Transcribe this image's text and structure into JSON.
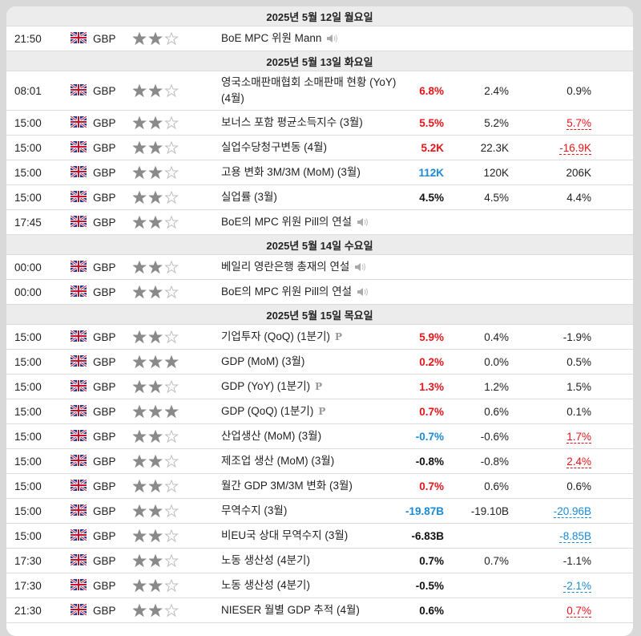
{
  "calendar": {
    "rows": [
      {
        "date": "2025년 5월 12일 월요일"
      },
      {
        "time": "21:50",
        "currency": "GBP",
        "importance": 2,
        "event": "BoE MPC 위원 Mann",
        "speech": true
      },
      {
        "date": "2025년 5월 13일 화요일"
      },
      {
        "time": "08:01",
        "currency": "GBP",
        "importance": 2,
        "event": "영국소매판매협회 소매판매 현황 (YoY) (4월)",
        "actual": "6.8%",
        "actual_color": "#e4141b",
        "forecast": "2.4%",
        "previous": "0.9%"
      },
      {
        "time": "15:00",
        "currency": "GBP",
        "importance": 2,
        "event": "보너스 포함 평균소득지수 (3월)",
        "actual": "5.5%",
        "actual_color": "#e4141b",
        "forecast": "5.2%",
        "previous": "5.7%",
        "previous_color": "#e4141b"
      },
      {
        "time": "15:00",
        "currency": "GBP",
        "importance": 2,
        "event": "실업수당청구변동 (4월)",
        "actual": "5.2K",
        "actual_color": "#e4141b",
        "forecast": "22.3K",
        "previous": "-16.9K",
        "previous_color": "#e4141b"
      },
      {
        "time": "15:00",
        "currency": "GBP",
        "importance": 2,
        "event": "고용 변화 3M/3M (MoM) (3월)",
        "actual": "112K",
        "actual_color": "#1a8ad4",
        "forecast": "120K",
        "previous": "206K"
      },
      {
        "time": "15:00",
        "currency": "GBP",
        "importance": 2,
        "event": "실업률 (3월)",
        "actual": "4.5%",
        "actual_color": "#111111",
        "forecast": "4.5%",
        "previous": "4.4%"
      },
      {
        "time": "17:45",
        "currency": "GBP",
        "importance": 2,
        "event": "BoE의 MPC 위원 Pill의 연설",
        "speech": true
      },
      {
        "date": "2025년 5월 14일 수요일"
      },
      {
        "time": "00:00",
        "currency": "GBP",
        "importance": 2,
        "event": "베일리 영란은행 총재의 연설",
        "speech": true
      },
      {
        "time": "00:00",
        "currency": "GBP",
        "importance": 2,
        "event": "BoE의 MPC 위원 Pill의 연설",
        "speech": true
      },
      {
        "date": "2025년 5월 15일 목요일"
      },
      {
        "time": "15:00",
        "currency": "GBP",
        "importance": 2,
        "event": "기업투자 (QoQ) (1분기)",
        "badge": "P",
        "actual": "5.9%",
        "actual_color": "#e4141b",
        "forecast": "0.4%",
        "previous": "-1.9%"
      },
      {
        "time": "15:00",
        "currency": "GBP",
        "importance": 3,
        "event": "GDP (MoM) (3월)",
        "actual": "0.2%",
        "actual_color": "#e4141b",
        "forecast": "0.0%",
        "previous": "0.5%"
      },
      {
        "time": "15:00",
        "currency": "GBP",
        "importance": 2,
        "event": "GDP (YoY) (1분기)",
        "badge": "P",
        "actual": "1.3%",
        "actual_color": "#e4141b",
        "forecast": "1.2%",
        "previous": "1.5%"
      },
      {
        "time": "15:00",
        "currency": "GBP",
        "importance": 3,
        "event": "GDP (QoQ) (1분기)",
        "badge": "P",
        "actual": "0.7%",
        "actual_color": "#e4141b",
        "forecast": "0.6%",
        "previous": "0.1%"
      },
      {
        "time": "15:00",
        "currency": "GBP",
        "importance": 2,
        "event": "산업생산 (MoM) (3월)",
        "actual": "-0.7%",
        "actual_color": "#1a8ad4",
        "forecast": "-0.6%",
        "previous": "1.7%",
        "previous_color": "#e4141b"
      },
      {
        "time": "15:00",
        "currency": "GBP",
        "importance": 2,
        "event": "제조업 생산 (MoM) (3월)",
        "actual": "-0.8%",
        "actual_color": "#111111",
        "forecast": "-0.8%",
        "previous": "2.4%",
        "previous_color": "#e4141b"
      },
      {
        "time": "15:00",
        "currency": "GBP",
        "importance": 2,
        "event": "월간 GDP 3M/3M 변화 (3월)",
        "actual": "0.7%",
        "actual_color": "#e4141b",
        "forecast": "0.6%",
        "previous": "0.6%"
      },
      {
        "time": "15:00",
        "currency": "GBP",
        "importance": 2,
        "event": "무역수지 (3월)",
        "actual": "-19.87B",
        "actual_color": "#1a8ad4",
        "forecast": "-19.10B",
        "previous": "-20.96B",
        "previous_color": "#1a8ad4"
      },
      {
        "time": "15:00",
        "currency": "GBP",
        "importance": 2,
        "event": "비EU국 상대 무역수지 (3월)",
        "actual": "-6.83B",
        "actual_color": "#111111",
        "previous": "-8.85B",
        "previous_color": "#1a8ad4"
      },
      {
        "time": "17:30",
        "currency": "GBP",
        "importance": 2,
        "event": "노동 생산성 (4분기)",
        "actual": "0.7%",
        "actual_color": "#111111",
        "forecast": "0.7%",
        "previous": "-1.1%"
      },
      {
        "time": "17:30",
        "currency": "GBP",
        "importance": 2,
        "event": "노동 생산성 (4분기)",
        "actual": "-0.5%",
        "actual_color": "#111111",
        "previous": "-2.1%",
        "previous_color": "#1a8ad4"
      },
      {
        "time": "21:30",
        "currency": "GBP",
        "importance": 2,
        "event": "NIESER 월별 GDP 추적 (4월)",
        "actual": "0.6%",
        "actual_color": "#111111",
        "previous": "0.7%",
        "previous_color": "#e4141b"
      }
    ]
  }
}
